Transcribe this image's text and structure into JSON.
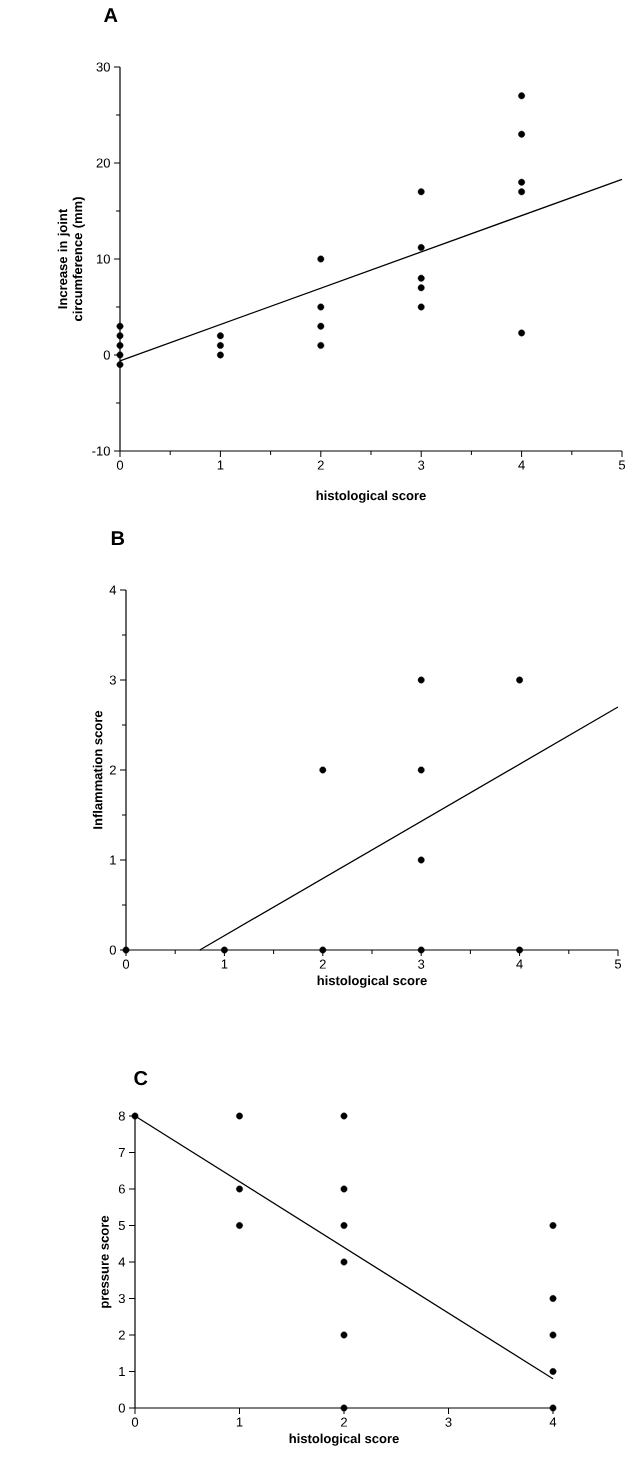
{
  "chart_data": [
    {
      "type": "scatter",
      "title": "A",
      "xlabel": "histological score",
      "ylabel": "Increase in joint circumference (mm)",
      "xlim": [
        0,
        5
      ],
      "ylim": [
        -10,
        30
      ],
      "xticks": [
        0,
        {
          "value": 0.5,
          "label": null
        },
        1,
        {
          "value": 1.5,
          "label": null
        },
        2,
        {
          "value": 2.5,
          "label": null
        },
        3,
        {
          "value": 3.5,
          "label": null
        },
        4,
        {
          "value": 4.5,
          "label": null
        },
        5
      ],
      "yticks": [
        -10,
        {
          "value": -5,
          "label": null
        },
        0,
        {
          "value": 5,
          "label": null
        },
        10,
        {
          "value": 15,
          "label": null
        },
        20,
        {
          "value": 25,
          "label": null
        },
        30
      ],
      "series": [
        {
          "color": "#000000",
          "marker": "circle",
          "x": [
            0,
            0,
            0,
            0,
            0,
            1,
            1,
            1,
            2,
            2,
            2,
            2,
            3,
            3,
            3,
            3,
            3,
            4,
            4,
            4,
            4,
            4
          ],
          "values": [
            3,
            2,
            1,
            0,
            -1,
            2,
            1,
            0,
            10,
            5,
            3,
            1,
            17,
            11.2,
            8,
            7,
            5,
            27,
            23,
            18,
            17,
            2.3
          ]
        },
        {
          "type": "line",
          "color": "#000000",
          "marker": "none",
          "x": [
            0,
            5
          ],
          "values": [
            -0.6,
            18.3
          ]
        }
      ]
    },
    {
      "type": "scatter",
      "title": "B",
      "xlabel": "histological score",
      "ylabel": "Inflammation score",
      "xlim": [
        0,
        5
      ],
      "ylim": [
        0,
        4
      ],
      "xticks": [
        0,
        {
          "value": 0.5,
          "label": null
        },
        1,
        {
          "value": 1.5,
          "label": null
        },
        2,
        {
          "value": 2.5,
          "label": null
        },
        3,
        {
          "value": 3.5,
          "label": null
        },
        4,
        {
          "value": 4.5,
          "label": null
        },
        5
      ],
      "yticks": [
        0,
        {
          "value": 0.5,
          "label": null
        },
        1,
        {
          "value": 1.5,
          "label": null
        },
        2,
        {
          "value": 2.5,
          "label": null
        },
        3,
        {
          "value": 3.5,
          "label": null
        },
        4
      ],
      "series": [
        {
          "color": "#000000",
          "marker": "circle",
          "x": [
            0,
            1,
            2,
            3,
            4,
            2,
            3,
            3,
            3,
            4
          ],
          "values": [
            0,
            0,
            0,
            0,
            0,
            2,
            3,
            2,
            1,
            3
          ]
        },
        {
          "type": "line",
          "color": "#000000",
          "marker": "none",
          "x": [
            0.75,
            5
          ],
          "values": [
            0,
            2.7
          ]
        }
      ]
    },
    {
      "type": "scatter",
      "title": "C",
      "xlabel": "histological score",
      "ylabel": "pressure score",
      "xlim": [
        0,
        4
      ],
      "ylim": [
        0,
        8
      ],
      "xticks": [
        0,
        1,
        2,
        3,
        4
      ],
      "yticks": [
        0,
        1,
        2,
        3,
        4,
        5,
        6,
        7,
        8
      ],
      "series": [
        {
          "color": "#000000",
          "marker": "circle",
          "x": [
            0,
            1,
            1,
            1,
            2,
            2,
            2,
            2,
            2,
            2,
            4,
            4,
            4,
            4,
            4
          ],
          "values": [
            8,
            8,
            6,
            5,
            8,
            6,
            5,
            4,
            2,
            0,
            5,
            3,
            2,
            1,
            0
          ]
        },
        {
          "type": "line",
          "color": "#000000",
          "marker": "none",
          "x": [
            0,
            4
          ],
          "values": [
            8,
            0.8
          ]
        }
      ]
    }
  ]
}
